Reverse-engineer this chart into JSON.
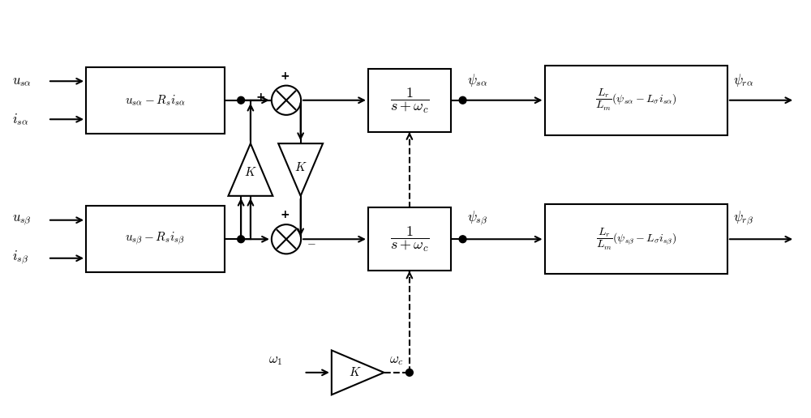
{
  "bg_color": "#ffffff",
  "lc": "#000000",
  "lw": 1.5,
  "figsize": [
    10.0,
    5.16
  ],
  "dpi": 100,
  "usa_label": "$u_{s\\alpha}$",
  "isa_label": "$i_{s\\alpha}$",
  "usb_label": "$u_{s\\beta}$",
  "isb_label": "$i_{s\\beta}$",
  "inbox_alpha": "$u_{s\\alpha} - R_s i_{s\\alpha}$",
  "inbox_beta": "$u_{s\\beta} - R_s i_{s\\beta}$",
  "int_label": "$\\dfrac{1}{s+\\omega_c}$",
  "outbox_alpha": "$\\dfrac{L_r}{L_m}(\\psi_{s\\alpha} - L_{\\sigma}i_{s\\alpha})$",
  "outbox_beta": "$\\dfrac{L_r}{L_m}(\\psi_{s\\beta} - L_{\\sigma}i_{s\\beta})$",
  "psi_sa": "$\\psi_{s\\alpha}$",
  "psi_sb": "$\\psi_{s\\beta}$",
  "psi_ra": "$\\psi_{r\\alpha}$",
  "psi_rb": "$\\psi_{r\\beta}$",
  "omega1": "$\\omega_1$",
  "omegac": "$\\omega_c$",
  "K": "$K$",
  "ya": 3.95,
  "yb": 2.2,
  "yg": 0.52
}
